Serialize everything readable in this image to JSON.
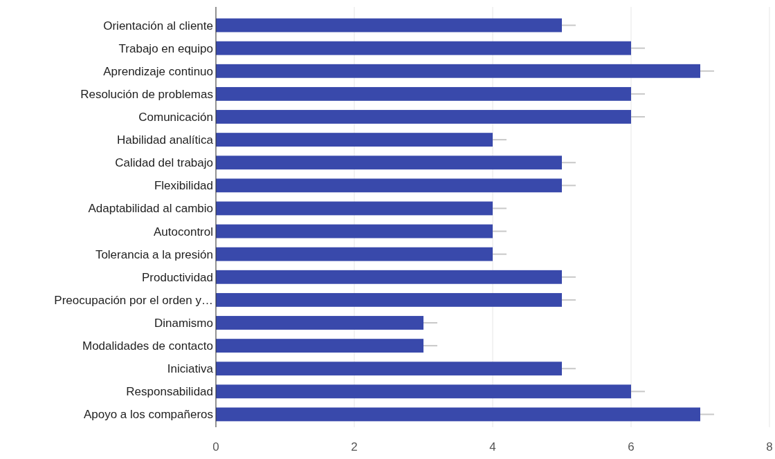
{
  "chart_data": {
    "type": "bar",
    "orientation": "horizontal",
    "categories": [
      "Orientación al cliente",
      "Trabajo en equipo",
      "Aprendizaje continuo",
      "Resolución de problemas",
      "Comunicación",
      "Habilidad analítica",
      "Calidad del trabajo",
      "Flexibilidad",
      "Adaptabilidad al cambio",
      "Autocontrol",
      "Tolerancia a la presión",
      "Productividad",
      "Preocupación por el orden y…",
      "Dinamismo",
      "Modalidades de contacto",
      "Iniciativa",
      "Responsabilidad",
      "Apoyo a los compañeros"
    ],
    "values": [
      5,
      6,
      7,
      6,
      6,
      4,
      5,
      5,
      4,
      4,
      4,
      5,
      5,
      3,
      3,
      5,
      6,
      7
    ],
    "errors": [
      [
        5,
        5.2
      ],
      [
        6,
        6.2
      ],
      [
        7,
        7.2
      ],
      [
        6,
        6.2
      ],
      [
        6,
        6.2
      ],
      [
        4,
        4.2
      ],
      [
        5,
        5.2
      ],
      [
        5,
        5.2
      ],
      [
        4,
        4.2
      ],
      [
        4,
        4.2
      ],
      [
        4,
        4.2
      ],
      [
        5,
        5.2
      ],
      [
        5,
        5.2
      ],
      [
        3,
        3.2
      ],
      [
        3,
        3.2
      ],
      [
        5,
        5.2
      ],
      [
        6,
        6.2
      ],
      [
        7,
        7.2
      ]
    ],
    "color": "#3949ab",
    "xlim": [
      0,
      8
    ],
    "xticks": [
      0,
      2,
      4,
      6,
      8
    ],
    "grid": "x"
  }
}
